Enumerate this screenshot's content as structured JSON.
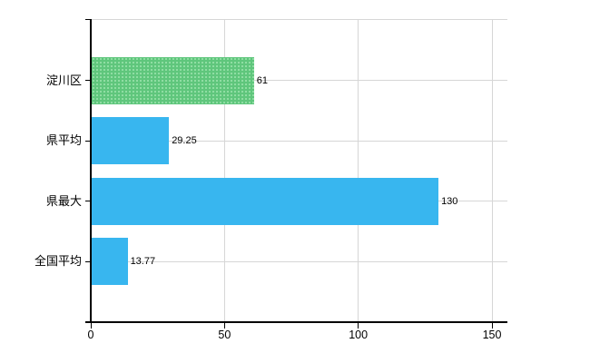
{
  "chart_data": {
    "type": "bar",
    "orientation": "horizontal",
    "title": "",
    "xlabel": "",
    "ylabel": "",
    "categories": [
      "淀川区",
      "県平均",
      "県最大",
      "全国平均"
    ],
    "values": [
      61,
      29.25,
      130,
      13.77
    ],
    "value_labels": [
      "61",
      "29.25",
      "130",
      "13.77"
    ],
    "bar_colors": [
      "#5fc67c",
      "#38b6ef",
      "#38b6ef",
      "#38b6ef"
    ],
    "bar_patterns": [
      "dots",
      "none",
      "none",
      "none"
    ],
    "x_ticks": [
      0,
      50,
      100,
      150
    ],
    "x_tick_labels": [
      "0",
      "50",
      "100",
      "150"
    ],
    "xlim": [
      0,
      155.8
    ],
    "grid": true,
    "legend": "none"
  },
  "colors": {
    "green_bar": "#5fc67c",
    "green_bar_dot": "#93dfa6",
    "blue_bar": "#38b6ef",
    "gridline": "#d6d6d6",
    "axis": "#000000",
    "text": "#000000",
    "background": "#ffffff"
  }
}
